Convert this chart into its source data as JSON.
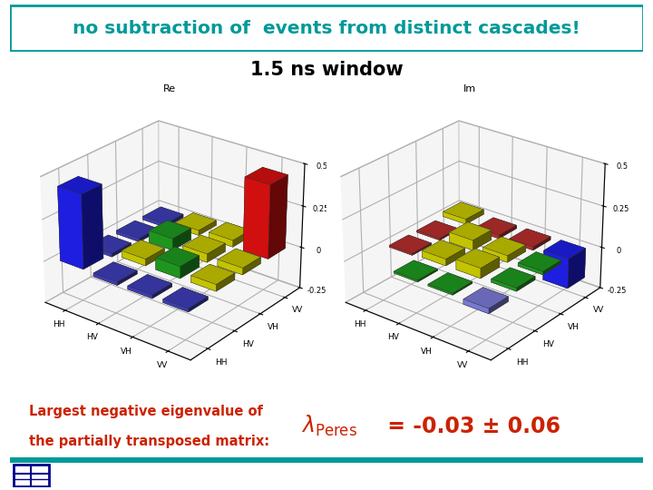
{
  "title_text": "no subtraction of  events from distinct cascades!",
  "title_color": "#009999",
  "subtitle_text": "1.5 ns window",
  "subtitle_color": "#000000",
  "white_bg": "#FFFFFF",
  "teal_color": "#009999",
  "orange_red": "#CC2200",
  "re_label": "Re",
  "im_label": "Im",
  "axis_labels": [
    "HH",
    "HV",
    "VH",
    "VV"
  ],
  "bottom_text1": "Largest negative eigenvalue of",
  "bottom_text2": "the partially transposed matrix:",
  "result_text": " = -0.03 ± 0.06",
  "logo_color": "#00008B",
  "re_matrix": [
    [
      0.44,
      -0.02,
      -0.02,
      -0.02
    ],
    [
      -0.02,
      0.04,
      0.07,
      0.04
    ],
    [
      -0.02,
      0.07,
      0.05,
      0.04
    ],
    [
      -0.02,
      0.03,
      0.04,
      0.44
    ]
  ],
  "im_matrix": [
    [
      0.0,
      0.01,
      0.01,
      -0.03
    ],
    [
      -0.01,
      0.04,
      0.06,
      0.02
    ],
    [
      -0.01,
      0.06,
      0.04,
      0.02
    ],
    [
      0.03,
      -0.02,
      -0.02,
      -0.18
    ]
  ]
}
